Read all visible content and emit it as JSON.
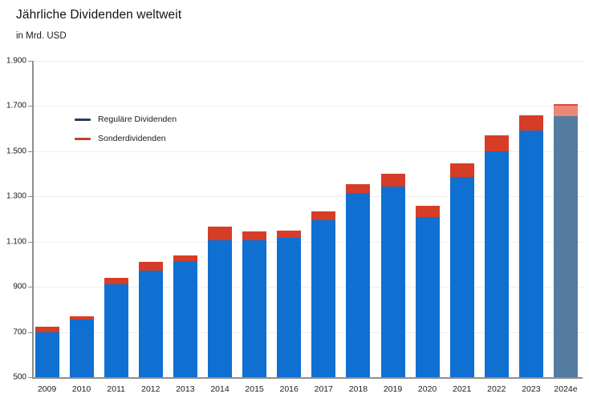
{
  "header": {
    "title": "Jährliche Dividenden weltweit",
    "subtitle": "in Mrd. USD"
  },
  "legend": {
    "items": [
      {
        "label": "Reguläre Dividenden",
        "marker_color": "#2E3A56"
      },
      {
        "label": "Sonderdividenden",
        "marker_color": "#B8452F"
      }
    ]
  },
  "colors": {
    "regular_bar": "#0F70D2",
    "special_bar": "#D63D27",
    "forecast_regular_bar": "#537CA0",
    "forecast_special_bar": "#EA8779",
    "forecast_top_border": "#DC4A3A",
    "axis": "#8E8E8E",
    "gridline": "#EDEDED"
  },
  "chart_data": {
    "type": "bar",
    "stacked": true,
    "title": "Jährliche Dividenden weltweit",
    "ylabel": "in Mrd. USD",
    "categories": [
      "2009",
      "2010",
      "2011",
      "2012",
      "2013",
      "2014",
      "2015",
      "2016",
      "2017",
      "2018",
      "2019",
      "2020",
      "2021",
      "2022",
      "2023",
      "2024e"
    ],
    "series": [
      {
        "name": "Reguläre Dividenden",
        "values": [
          700,
          755,
          910,
          970,
          1015,
          1105,
          1105,
          1115,
          1195,
          1315,
          1345,
          1210,
          1385,
          1500,
          1590,
          1655
        ]
      },
      {
        "name": "Sonderdividenden",
        "values": [
          25,
          15,
          30,
          40,
          25,
          60,
          40,
          35,
          40,
          40,
          55,
          50,
          60,
          70,
          70,
          55
        ]
      }
    ],
    "totals": [
      725,
      770,
      940,
      1010,
      1040,
      1165,
      1145,
      1150,
      1235,
      1355,
      1400,
      1260,
      1445,
      1570,
      1660,
      1710
    ],
    "forecast_index": 15,
    "ylim": [
      500,
      1900
    ],
    "ytick_values": [
      500,
      700,
      900,
      1100,
      1300,
      1500,
      1700,
      1900
    ],
    "ytick_labels": [
      "500",
      "700",
      "900",
      "1.100",
      "1.300",
      "1.500",
      "1.700",
      "1.900"
    ],
    "grid": true,
    "legend_position": "top-left"
  }
}
